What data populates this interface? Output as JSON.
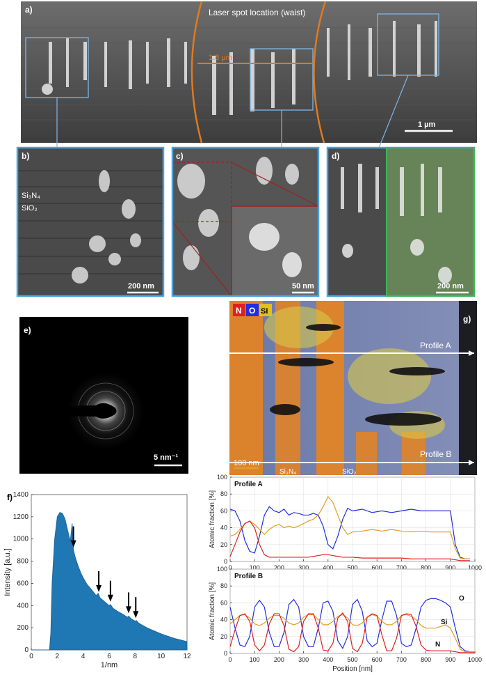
{
  "panels": {
    "a": {
      "label": "a)",
      "title": "Laser spot location (waist)",
      "width_label": "1.8 µm",
      "scale": "1 µm"
    },
    "b": {
      "label": "b)",
      "layer1": "Si₃N₄",
      "layer2": "SiO₂",
      "scale": "200 nm"
    },
    "c": {
      "label": "c)",
      "scale": "50 nm"
    },
    "d": {
      "label": "d)",
      "scale": "200 nm"
    },
    "e": {
      "label": "e)",
      "scale": "5 nm⁻¹"
    },
    "g": {
      "label": "g)",
      "legend": [
        "N",
        "O",
        "Si"
      ],
      "profile_a": "Profile A",
      "profile_b": "Profile B",
      "scale": "100 nm",
      "layer1": "Si₃N₄",
      "layer2": "SiO₂"
    }
  },
  "colors": {
    "accent_blue": "#5aa6e0",
    "orange": "#e07a1e",
    "nitrogen": "#e02020",
    "oxygen": "#2030e0",
    "silicon": "#e0a020",
    "fill_blue": "#1f77b4"
  },
  "chart_data": [
    {
      "id": "f",
      "label": "f)",
      "type": "area",
      "xlabel": "1/nm",
      "ylabel": "Intensity [a.u.]",
      "xlim": [
        0,
        12
      ],
      "ylim": [
        0,
        1400
      ],
      "xticks": [
        0,
        2,
        4,
        6,
        8,
        10,
        12
      ],
      "yticks": [
        0,
        200,
        400,
        600,
        800,
        1000,
        1200,
        1400
      ],
      "x": [
        0,
        1.4,
        1.5,
        1.6,
        1.8,
        2.0,
        2.2,
        2.4,
        2.6,
        2.8,
        3.0,
        3.15,
        3.25,
        3.4,
        3.6,
        3.8,
        4.0,
        4.3,
        4.6,
        5.0,
        5.15,
        5.3,
        5.6,
        6.0,
        6.1,
        6.3,
        6.7,
        7.0,
        7.4,
        7.5,
        7.7,
        8.0,
        8.1,
        8.3,
        8.6,
        9.0,
        9.5,
        10.0,
        10.5,
        11.0,
        11.5,
        12.0
      ],
      "values": [
        0,
        0,
        150,
        600,
        1000,
        1200,
        1240,
        1230,
        1180,
        1080,
        980,
        1140,
        900,
        830,
        760,
        700,
        650,
        590,
        550,
        490,
        510,
        470,
        440,
        400,
        410,
        375,
        345,
        325,
        295,
        305,
        280,
        260,
        265,
        240,
        220,
        195,
        170,
        145,
        125,
        105,
        90,
        75
      ],
      "arrows_x": [
        3.25,
        5.2,
        6.1,
        7.5,
        8.05
      ]
    },
    {
      "id": "profile-a",
      "type": "line",
      "title": "Profile A",
      "xlabel": "",
      "ylabel": "Atomic fraction [%]",
      "xlim": [
        0,
        1000
      ],
      "ylim": [
        0,
        100
      ],
      "xticks": [
        0,
        100,
        200,
        300,
        400,
        500,
        600,
        700,
        800,
        900,
        1000
      ],
      "yticks": [
        0,
        20,
        40,
        60,
        80,
        100
      ],
      "x": [
        0,
        20,
        40,
        60,
        80,
        100,
        120,
        140,
        160,
        180,
        200,
        220,
        240,
        260,
        280,
        300,
        320,
        340,
        360,
        380,
        400,
        420,
        440,
        460,
        480,
        500,
        540,
        580,
        620,
        660,
        700,
        740,
        780,
        820,
        860,
        900,
        920,
        940,
        960,
        980
      ],
      "series": [
        {
          "name": "O",
          "color": "#2030e0",
          "values": [
            62,
            60,
            48,
            25,
            12,
            10,
            30,
            55,
            65,
            60,
            58,
            62,
            55,
            58,
            57,
            55,
            55,
            57,
            55,
            42,
            20,
            15,
            30,
            50,
            63,
            60,
            62,
            58,
            60,
            58,
            60,
            62,
            60,
            60,
            60,
            60,
            20,
            5,
            3,
            3
          ]
        },
        {
          "name": "Si",
          "color": "#e0a020",
          "values": [
            30,
            32,
            38,
            45,
            48,
            44,
            38,
            32,
            38,
            42,
            44,
            40,
            42,
            40,
            42,
            45,
            48,
            50,
            55,
            65,
            77,
            70,
            55,
            40,
            32,
            35,
            36,
            38,
            36,
            38,
            36,
            35,
            36,
            35,
            35,
            35,
            15,
            4,
            3,
            3
          ]
        },
        {
          "name": "N",
          "color": "#e02020",
          "values": [
            6,
            20,
            35,
            45,
            48,
            40,
            20,
            8,
            5,
            5,
            5,
            5,
            5,
            5,
            5,
            5,
            5,
            6,
            7,
            8,
            8,
            7,
            6,
            5,
            5,
            5,
            4,
            4,
            4,
            4,
            4,
            3,
            3,
            3,
            3,
            3,
            2,
            1,
            1,
            1
          ]
        }
      ]
    },
    {
      "id": "profile-b",
      "type": "line",
      "title": "Profile B",
      "xlabel": "Position [nm]",
      "ylabel": "Atomic fraction [%]",
      "xlim": [
        0,
        1000
      ],
      "ylim": [
        0,
        100
      ],
      "xticks": [
        0,
        100,
        200,
        300,
        400,
        500,
        600,
        700,
        800,
        900,
        1000
      ],
      "yticks": [
        0,
        20,
        40,
        60,
        80,
        100
      ],
      "x": [
        0,
        20,
        40,
        60,
        80,
        100,
        120,
        140,
        160,
        180,
        200,
        220,
        240,
        260,
        280,
        300,
        320,
        340,
        360,
        380,
        400,
        420,
        440,
        460,
        480,
        500,
        520,
        540,
        560,
        580,
        600,
        620,
        640,
        660,
        680,
        700,
        720,
        740,
        760,
        780,
        800,
        820,
        840,
        860,
        880,
        900,
        920,
        940,
        960,
        980,
        1000
      ],
      "series": [
        {
          "name": "O",
          "color": "#2030e0",
          "values": [
            55,
            30,
            10,
            8,
            20,
            55,
            63,
            55,
            25,
            8,
            8,
            25,
            58,
            64,
            55,
            20,
            8,
            8,
            30,
            60,
            62,
            50,
            15,
            6,
            20,
            58,
            64,
            50,
            15,
            8,
            12,
            40,
            62,
            62,
            45,
            12,
            8,
            10,
            30,
            55,
            63,
            65,
            65,
            63,
            60,
            55,
            30,
            8,
            3,
            2,
            2
          ]
        },
        {
          "name": "Si",
          "color": "#e0a020",
          "values": [
            35,
            40,
            45,
            46,
            42,
            35,
            33,
            36,
            42,
            45,
            45,
            42,
            36,
            34,
            36,
            43,
            46,
            46,
            40,
            34,
            34,
            38,
            44,
            46,
            42,
            34,
            33,
            36,
            43,
            46,
            44,
            38,
            34,
            34,
            38,
            45,
            46,
            44,
            40,
            33,
            30,
            30,
            30,
            32,
            34,
            30,
            18,
            5,
            2,
            2,
            2
          ]
        },
        {
          "name": "N",
          "color": "#e02020",
          "values": [
            8,
            28,
            45,
            47,
            38,
            10,
            3,
            10,
            35,
            47,
            47,
            33,
            5,
            2,
            8,
            38,
            47,
            47,
            30,
            4,
            3,
            12,
            42,
            48,
            38,
            6,
            2,
            12,
            43,
            47,
            45,
            22,
            3,
            3,
            18,
            45,
            47,
            46,
            32,
            10,
            4,
            3,
            3,
            3,
            3,
            3,
            2,
            1,
            1,
            1,
            1
          ]
        }
      ]
    }
  ]
}
